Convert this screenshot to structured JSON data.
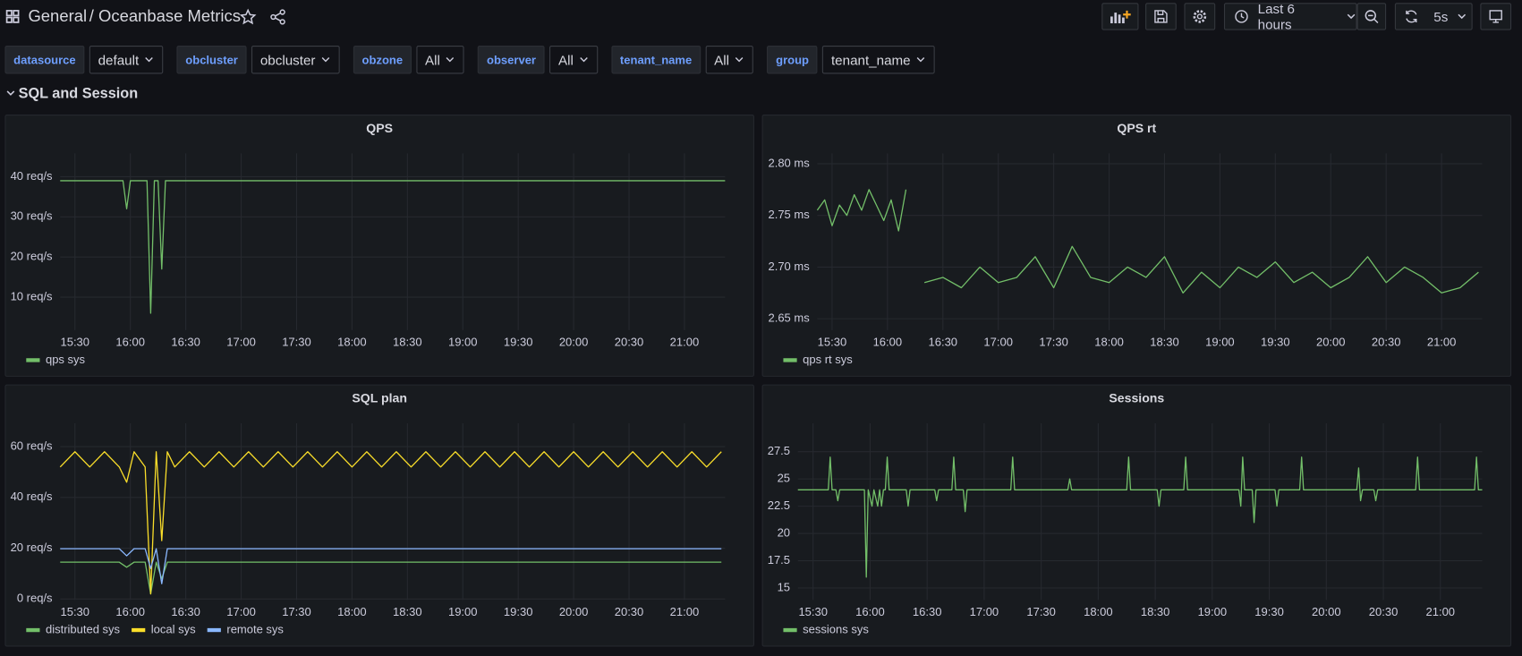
{
  "header": {
    "folder": "General",
    "title": "/ Oceanbase Metrics",
    "time_range": "Last 6 hours",
    "refresh": "5s"
  },
  "variables": [
    {
      "label": "datasource",
      "value": "default"
    },
    {
      "label": "obcluster",
      "value": "obcluster"
    },
    {
      "label": "obzone",
      "value": "All"
    },
    {
      "label": "observer",
      "value": "All"
    },
    {
      "label": "tenant_name",
      "value": "All"
    },
    {
      "label": "group",
      "value": "tenant_name"
    }
  ],
  "row": {
    "title": "SQL and Session"
  },
  "chart_data": [
    {
      "type": "line",
      "title": "QPS",
      "grid": true,
      "xlim": [
        "15:22",
        "21:22"
      ],
      "xticks": [
        "15:30",
        "16:00",
        "16:30",
        "17:00",
        "17:30",
        "18:00",
        "18:30",
        "19:00",
        "19:30",
        "20:00",
        "20:30",
        "21:00"
      ],
      "ylim": [
        1.8,
        45.8
      ],
      "yticks": [
        {
          "value": 10,
          "label": "10 req/s"
        },
        {
          "value": 20,
          "label": "20 req/s"
        },
        {
          "value": 30,
          "label": "30 req/s"
        },
        {
          "value": 40,
          "label": "40 req/s"
        }
      ],
      "x": [
        "15:22",
        "15:56",
        "15:58",
        "16:00",
        "16:09",
        "16:11",
        "16:13",
        "16:15",
        "16:17",
        "16:19",
        "21:22"
      ],
      "series": [
        {
          "name": "qps sys",
          "color": "#73bf69",
          "values": [
            39,
            39,
            32,
            39,
            39,
            6,
            39,
            39,
            17,
            39,
            39
          ]
        }
      ]
    },
    {
      "type": "line",
      "title": "QPS rt",
      "grid": true,
      "xlim": [
        "15:22",
        "21:22"
      ],
      "xticks": [
        "15:30",
        "16:00",
        "16:30",
        "17:00",
        "17:30",
        "18:00",
        "18:30",
        "19:00",
        "19:30",
        "20:00",
        "20:30",
        "21:00"
      ],
      "ylim": [
        2.639,
        2.81
      ],
      "yticks": [
        {
          "value": 2.65,
          "label": "2.65 ms"
        },
        {
          "value": 2.7,
          "label": "2.70 ms"
        },
        {
          "value": 2.75,
          "label": "2.75 ms"
        },
        {
          "value": 2.8,
          "label": "2.80 ms"
        }
      ],
      "x": [
        "15:22",
        "15:26",
        "15:30",
        "15:34",
        "15:38",
        "15:42",
        "15:46",
        "15:50",
        "15:54",
        "15:58",
        "16:02",
        "16:06",
        "16:10",
        "16:14",
        "16:20",
        "16:30",
        "16:40",
        "16:50",
        "17:00",
        "17:10",
        "17:20",
        "17:30",
        "17:40",
        "17:50",
        "18:00",
        "18:10",
        "18:20",
        "18:30",
        "18:40",
        "18:50",
        "19:00",
        "19:10",
        "19:20",
        "19:30",
        "19:40",
        "19:50",
        "20:00",
        "20:10",
        "20:20",
        "20:30",
        "20:40",
        "20:50",
        "21:00",
        "21:10",
        "21:20"
      ],
      "series": [
        {
          "name": "qps rt sys",
          "color": "#73bf69",
          "values": [
            2.755,
            2.765,
            2.74,
            2.76,
            2.75,
            2.77,
            2.755,
            2.775,
            2.76,
            2.745,
            2.765,
            2.735,
            2.775,
            null,
            2.685,
            2.69,
            2.68,
            2.7,
            2.685,
            2.69,
            2.71,
            2.68,
            2.72,
            2.69,
            2.685,
            2.7,
            2.69,
            2.71,
            2.675,
            2.695,
            2.68,
            2.7,
            2.69,
            2.705,
            2.685,
            2.695,
            2.68,
            2.69,
            2.71,
            2.685,
            2.7,
            2.69,
            2.675,
            2.68,
            2.695
          ]
        }
      ]
    },
    {
      "type": "line",
      "title": "SQL plan",
      "grid": true,
      "xlim": [
        "15:22",
        "21:22"
      ],
      "xticks": [
        "15:30",
        "16:00",
        "16:30",
        "17:00",
        "17:30",
        "18:00",
        "18:30",
        "19:00",
        "19:30",
        "20:00",
        "20:30",
        "21:00"
      ],
      "ylim": [
        -0.4,
        69.2
      ],
      "yticks": [
        {
          "value": 0,
          "label": "0 req/s"
        },
        {
          "value": 20,
          "label": "20 req/s"
        },
        {
          "value": 40,
          "label": "40 req/s"
        },
        {
          "value": 60,
          "label": "60 req/s"
        }
      ],
      "x": [
        "15:22",
        "15:30",
        "15:38",
        "15:46",
        "15:54",
        "15:58",
        "16:02",
        "16:08",
        "16:11",
        "16:14",
        "16:17",
        "16:20",
        "16:24",
        "16:32",
        "16:40",
        "16:48",
        "16:56",
        "17:04",
        "17:12",
        "17:20",
        "17:28",
        "17:36",
        "17:44",
        "17:52",
        "18:00",
        "18:08",
        "18:16",
        "18:24",
        "18:32",
        "18:40",
        "18:48",
        "18:56",
        "19:04",
        "19:12",
        "19:20",
        "19:28",
        "19:36",
        "19:44",
        "19:52",
        "20:00",
        "20:08",
        "20:16",
        "20:24",
        "20:32",
        "20:40",
        "20:48",
        "20:56",
        "21:04",
        "21:12",
        "21:20"
      ],
      "series": [
        {
          "name": "distributed sys",
          "color": "#73bf69",
          "values": [
            14.5,
            14.5,
            14.5,
            14.5,
            14.5,
            12.5,
            14.5,
            14.5,
            2,
            14.5,
            8,
            14.5,
            14.5,
            14.5,
            14.5,
            14.5,
            14.5,
            14.5,
            14.5,
            14.5,
            14.5,
            14.5,
            14.5,
            14.5,
            14.5,
            14.5,
            14.5,
            14.5,
            14.5,
            14.5,
            14.5,
            14.5,
            14.5,
            14.5,
            14.5,
            14.5,
            14.5,
            14.5,
            14.5,
            14.5,
            14.5,
            14.5,
            14.5,
            14.5,
            14.5,
            14.5,
            14.5,
            14.5,
            14.5,
            14.5
          ]
        },
        {
          "name": "local sys",
          "color": "#fade2a",
          "values": [
            52,
            58,
            52,
            58,
            52,
            46,
            58,
            52,
            2,
            58,
            23,
            58,
            52,
            58,
            52,
            58,
            52,
            58,
            52,
            58,
            52,
            58,
            52,
            58,
            52,
            58,
            52,
            58,
            52,
            58,
            52,
            58,
            52,
            58,
            52,
            58,
            52,
            58,
            52,
            58,
            52,
            58,
            52,
            58,
            52,
            58,
            52,
            58,
            52,
            58
          ]
        },
        {
          "name": "remote sys",
          "color": "#8ab8ff",
          "values": [
            19.8,
            19.8,
            19.8,
            19.8,
            19.8,
            17,
            19.8,
            19.8,
            12,
            19.8,
            6,
            19.8,
            19.8,
            19.8,
            19.8,
            19.8,
            19.8,
            19.8,
            19.8,
            19.8,
            19.8,
            19.8,
            19.8,
            19.8,
            19.8,
            19.8,
            19.8,
            19.8,
            19.8,
            19.8,
            19.8,
            19.8,
            19.8,
            19.8,
            19.8,
            19.8,
            19.8,
            19.8,
            19.8,
            19.8,
            19.8,
            19.8,
            19.8,
            19.8,
            19.8,
            19.8,
            19.8,
            19.8,
            19.8,
            19.8
          ]
        }
      ]
    },
    {
      "type": "line",
      "title": "Sessions",
      "grid": true,
      "xlim": [
        "15:22",
        "21:22"
      ],
      "xticks": [
        "15:30",
        "16:00",
        "16:30",
        "17:00",
        "17:30",
        "18:00",
        "18:30",
        "19:00",
        "19:30",
        "20:00",
        "20:30",
        "21:00"
      ],
      "ylim": [
        13.9,
        30.1
      ],
      "yticks": [
        15,
        17.5,
        20,
        22.5,
        25,
        27.5
      ],
      "x": [
        "15:22",
        "15:38",
        "15:39",
        "15:40",
        "15:42",
        "15:43",
        "15:44",
        "15:57",
        "15:58",
        "15:59",
        "16:01",
        "16:02",
        "16:04",
        "16:05",
        "16:06",
        "16:07",
        "16:08",
        "16:09",
        "16:10",
        "16:19",
        "16:20",
        "16:21",
        "16:34",
        "16:35",
        "16:36",
        "16:43",
        "16:44",
        "16:45",
        "16:49",
        "16:50",
        "16:51",
        "17:14",
        "17:15",
        "17:16",
        "17:44",
        "17:45",
        "17:46",
        "18:15",
        "18:16",
        "18:17",
        "18:31",
        "18:32",
        "18:33",
        "18:45",
        "18:46",
        "18:47",
        "19:14",
        "19:15",
        "19:16",
        "19:17",
        "19:21",
        "19:22",
        "19:23",
        "19:33",
        "19:34",
        "19:35",
        "19:46",
        "19:47",
        "19:48",
        "20:16",
        "20:17",
        "20:18",
        "20:19",
        "20:25",
        "20:26",
        "20:27",
        "20:47",
        "20:48",
        "20:49",
        "21:18",
        "21:19",
        "21:20",
        "21:22"
      ],
      "series": [
        {
          "name": "sessions sys",
          "color": "#73bf69",
          "values": [
            24,
            24,
            27,
            24,
            24,
            23,
            24,
            24,
            16,
            24,
            22.5,
            24,
            22.5,
            24,
            22.5,
            24,
            24,
            27,
            24,
            24,
            22.5,
            24,
            24,
            23,
            24,
            24,
            27,
            24,
            24,
            22,
            24,
            24,
            27,
            24,
            24,
            25,
            24,
            24,
            27,
            24,
            24,
            22.5,
            24,
            24,
            27,
            24,
            24,
            22.5,
            27,
            24,
            24,
            21,
            24,
            24,
            22.5,
            24,
            24,
            27,
            24,
            24,
            26,
            23,
            24,
            24,
            23,
            24,
            24,
            27,
            24,
            24,
            27,
            24,
            24
          ]
        }
      ]
    }
  ]
}
